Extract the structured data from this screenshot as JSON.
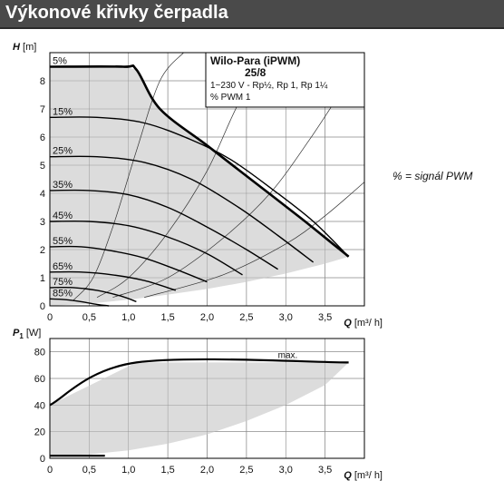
{
  "header": {
    "title": "Výkonové křivky čerpadla"
  },
  "note": "% = signál PWM",
  "info": {
    "model": "Wilo-Para (iPWM)",
    "size": "25/8",
    "spec": "1~230 V - Rp½, Rp 1, Rp 1¼",
    "mode": "% PWM 1"
  },
  "chart_data": [
    {
      "type": "line",
      "ylabel_symbol": "H",
      "ylabel_unit": " [m]",
      "xlabel_symbol": "Q",
      "xlabel_unit": " [m³/ h]",
      "xlim": [
        0,
        4
      ],
      "ylim": [
        0,
        9
      ],
      "xticks": [
        0,
        0.5,
        1,
        1.5,
        2,
        2.5,
        3,
        3.5
      ],
      "xtick_labels": [
        "0",
        "0,5",
        "1,0",
        "1,5",
        "2,0",
        "2,5",
        "3,0",
        "3,5"
      ],
      "yticks": [
        0,
        1,
        2,
        3,
        4,
        5,
        6,
        7,
        8
      ],
      "ytick_labels": [
        "0",
        "1",
        "2",
        "3",
        "4",
        "5",
        "6",
        "7",
        "8"
      ],
      "grid": true,
      "series": [
        {
          "name": "5%",
          "x": [
            0,
            0.93,
            1.1,
            1.4,
            2.0,
            2.6,
            3.2,
            3.6,
            3.8
          ],
          "y": [
            8.5,
            8.5,
            8.4,
            7.0,
            5.7,
            4.4,
            3.1,
            2.2,
            1.75
          ]
        },
        {
          "name": "15%",
          "x": [
            0,
            0.6,
            1.2,
            1.8,
            2.3,
            2.85,
            3.35,
            3.8
          ],
          "y": [
            6.7,
            6.7,
            6.5,
            5.9,
            5.2,
            4.1,
            3.0,
            1.75
          ]
        },
        {
          "name": "25%",
          "x": [
            0,
            0.6,
            1.2,
            1.8,
            2.4,
            2.9,
            3.35
          ],
          "y": [
            5.3,
            5.3,
            5.1,
            4.5,
            3.5,
            2.5,
            1.55
          ]
        },
        {
          "name": "35%",
          "x": [
            0,
            0.5,
            1.0,
            1.5,
            2.0,
            2.5,
            2.9
          ],
          "y": [
            4.1,
            4.1,
            3.95,
            3.5,
            2.8,
            2.0,
            1.3
          ]
        },
        {
          "name": "45%",
          "x": [
            0,
            0.5,
            1.0,
            1.5,
            2.0,
            2.45
          ],
          "y": [
            3.0,
            3.0,
            2.85,
            2.45,
            1.85,
            1.1
          ]
        },
        {
          "name": "55%",
          "x": [
            0,
            0.4,
            0.8,
            1.2,
            1.6,
            2.0
          ],
          "y": [
            2.1,
            2.1,
            1.95,
            1.7,
            1.3,
            0.85
          ]
        },
        {
          "name": "65%",
          "x": [
            0,
            0.4,
            0.8,
            1.2,
            1.6
          ],
          "y": [
            1.2,
            1.2,
            1.1,
            0.9,
            0.55
          ]
        },
        {
          "name": "75%",
          "x": [
            0,
            0.3,
            0.6,
            0.9,
            1.1
          ],
          "y": [
            0.65,
            0.65,
            0.55,
            0.35,
            0.15
          ]
        },
        {
          "name": "85%",
          "x": [
            0,
            0.2,
            0.4,
            0.6,
            0.75
          ],
          "y": [
            0.25,
            0.22,
            0.15,
            0.05,
            0.0
          ]
        }
      ],
      "fill_region": {
        "x": [
          0,
          0.93,
          1.1,
          1.4,
          2.0,
          2.6,
          3.2,
          3.6,
          3.8,
          3.5,
          3.0,
          2.5,
          2.0,
          1.5,
          1.0,
          0.5,
          0
        ],
        "y": [
          8.5,
          8.5,
          8.4,
          7.0,
          5.7,
          4.4,
          3.1,
          2.2,
          1.75,
          1.5,
          1.15,
          0.85,
          0.6,
          0.4,
          0.22,
          0.08,
          0
        ]
      },
      "system_curves": [
        {
          "x": [
            0.3,
            0.55,
            0.8,
            1.1,
            1.4,
            1.7
          ],
          "y": [
            0.2,
            1.0,
            2.8,
            5.5,
            8.0,
            9.0
          ]
        },
        {
          "x": [
            0.6,
            1.0,
            1.5,
            2.0,
            2.4,
            2.8
          ],
          "y": [
            0.3,
            1.0,
            2.6,
            4.8,
            7.2,
            9.0
          ]
        },
        {
          "x": [
            0.8,
            1.5,
            2.2,
            2.8,
            3.3,
            3.7
          ],
          "y": [
            0.3,
            1.0,
            2.4,
            4.0,
            5.9,
            7.6
          ]
        },
        {
          "x": [
            1.2,
            2.2,
            3.0,
            3.5,
            4.0
          ],
          "y": [
            0.3,
            1.1,
            2.2,
            3.2,
            4.4
          ]
        }
      ]
    },
    {
      "type": "line",
      "ylabel_symbol": "P",
      "ylabel_sub": "1",
      "ylabel_unit": " [W]",
      "xlabel_symbol": "Q",
      "xlabel_unit": " [m³/ h]",
      "xlim": [
        0,
        4
      ],
      "ylim": [
        0,
        90
      ],
      "xticks": [
        0,
        0.5,
        1,
        1.5,
        2,
        2.5,
        3,
        3.5
      ],
      "xtick_labels": [
        "0",
        "0,5",
        "1,0",
        "1,5",
        "2,0",
        "2,5",
        "3,0",
        "3,5"
      ],
      "yticks": [
        0,
        20,
        40,
        60,
        80
      ],
      "ytick_labels": [
        "0",
        "20",
        "40",
        "60",
        "80"
      ],
      "grid": true,
      "series": [
        {
          "name": "max.",
          "x": [
            0,
            1.1,
            3.8
          ],
          "y": [
            40,
            72,
            72
          ]
        },
        {
          "name": "",
          "x": [
            0,
            0.7
          ],
          "y": [
            2,
            2
          ]
        }
      ],
      "fill_region": {
        "x": [
          0,
          1.1,
          3.8,
          3.5,
          3.0,
          2.5,
          2.0,
          1.5,
          1.0,
          0.5,
          0
        ],
        "y": [
          40,
          72,
          72,
          55,
          40,
          28,
          18,
          11,
          6,
          3,
          2
        ]
      }
    }
  ]
}
